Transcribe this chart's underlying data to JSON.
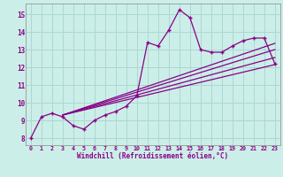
{
  "xlabel": "Windchill (Refroidissement éolien,°C)",
  "xlim": [
    -0.5,
    23.5
  ],
  "ylim": [
    7.6,
    15.6
  ],
  "xticks": [
    0,
    1,
    2,
    3,
    4,
    5,
    6,
    7,
    8,
    9,
    10,
    11,
    12,
    13,
    14,
    15,
    16,
    17,
    18,
    19,
    20,
    21,
    22,
    23
  ],
  "yticks": [
    8,
    9,
    10,
    11,
    12,
    13,
    14,
    15
  ],
  "background_color": "#cceee8",
  "grid_color": "#aad8d2",
  "line_color": "#880088",
  "font_color": "#880088",
  "main_x": [
    0,
    1,
    2,
    3,
    4,
    5,
    6,
    7,
    8,
    9,
    10,
    11,
    12,
    13,
    14,
    15,
    16,
    17,
    18,
    19,
    20,
    21,
    22,
    23
  ],
  "main_y": [
    8.0,
    9.2,
    9.4,
    9.2,
    8.7,
    8.5,
    9.0,
    9.3,
    9.5,
    9.8,
    10.4,
    13.4,
    13.2,
    14.1,
    15.25,
    14.8,
    13.0,
    12.85,
    12.85,
    13.2,
    13.5,
    13.65,
    13.65,
    12.2
  ],
  "straight_lines": [
    {
      "x": [
        3.0,
        23.0
      ],
      "y": [
        9.3,
        12.15
      ]
    },
    {
      "x": [
        3.0,
        23.0
      ],
      "y": [
        9.3,
        12.55
      ]
    },
    {
      "x": [
        3.0,
        23.0
      ],
      "y": [
        9.3,
        13.0
      ]
    },
    {
      "x": [
        3.0,
        23.0
      ],
      "y": [
        9.3,
        13.35
      ]
    }
  ]
}
